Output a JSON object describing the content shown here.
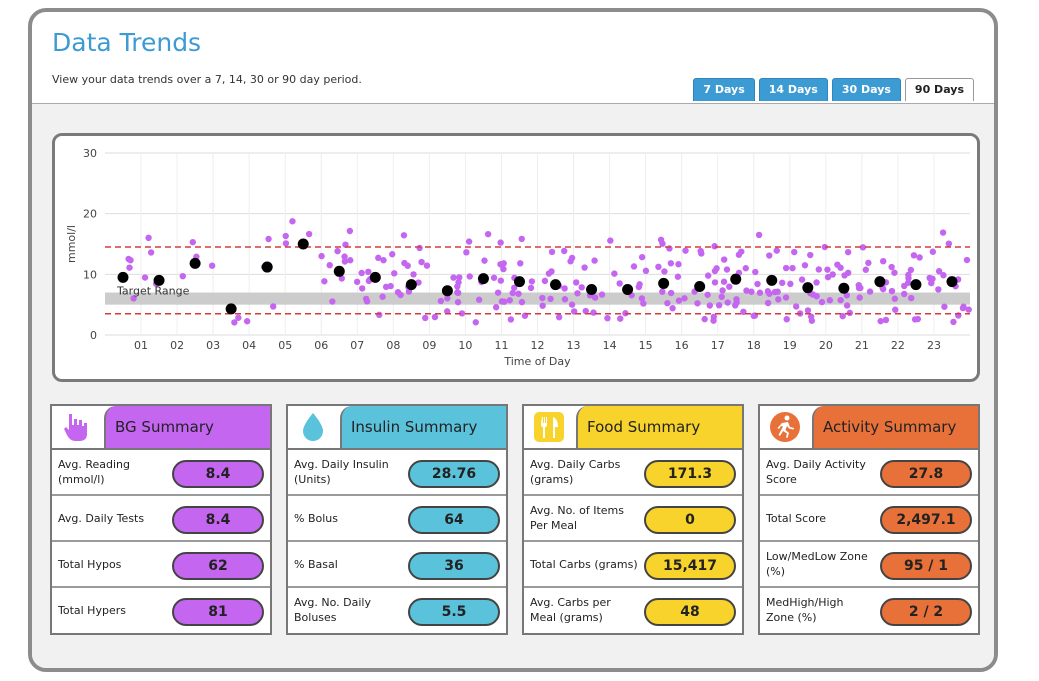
{
  "page": {
    "title": "Data Trends",
    "subtitle": "View your data trends over a 7, 14, 30 or 90 day period."
  },
  "tabs": [
    {
      "label": "7 Days",
      "active": false
    },
    {
      "label": "14 Days",
      "active": false
    },
    {
      "label": "30 Days",
      "active": false
    },
    {
      "label": "90 Days",
      "active": true
    }
  ],
  "chart_data": {
    "type": "scatter",
    "xlabel": "Time of Day",
    "ylabel": "mmol/l",
    "ylim": [
      0,
      30
    ],
    "xlim": [
      0,
      24
    ],
    "yticks": [
      "0",
      "10",
      "20",
      "30"
    ],
    "xticks": [
      "01",
      "02",
      "03",
      "04",
      "05",
      "06",
      "07",
      "08",
      "09",
      "10",
      "11",
      "12",
      "13",
      "14",
      "15",
      "16",
      "17",
      "18",
      "19",
      "20",
      "21",
      "22",
      "23"
    ],
    "target_range": {
      "label": "Target Range",
      "low": 5,
      "high": 7
    },
    "limits": {
      "hypo": 3.5,
      "hyper": 14.5
    },
    "hourly_averages": {
      "x": [
        0.5,
        1.5,
        2.5,
        3.5,
        4.5,
        5.5,
        6.5,
        7.5,
        8.5,
        9.5,
        10.5,
        11.5,
        12.5,
        13.5,
        14.5,
        15.5,
        16.5,
        17.5,
        18.5,
        19.5,
        20.5,
        21.5,
        22.5,
        23.5
      ],
      "y": [
        9.5,
        9.0,
        11.8,
        4.3,
        11.2,
        15.0,
        10.5,
        9.5,
        8.3,
        7.3,
        9.3,
        8.8,
        8.3,
        7.5,
        7.5,
        8.5,
        8.0,
        9.2,
        9.0,
        7.8,
        7.7,
        8.8,
        8.3,
        8.8
      ]
    },
    "readings_colors": {
      "reading": "#c466f0",
      "average": "#000000",
      "limit": "#d63a3a",
      "target": "#cccccc"
    }
  },
  "summaries": [
    {
      "title": "BG Summary",
      "icon": "hand-icon",
      "color": "#c466f0",
      "rows": [
        {
          "label": "Avg. Reading (mmol/l)",
          "value": "8.4"
        },
        {
          "label": "Avg. Daily Tests",
          "value": "8.4"
        },
        {
          "label": "Total Hypos",
          "value": "62"
        },
        {
          "label": "Total Hypers",
          "value": "81"
        }
      ]
    },
    {
      "title": "Insulin Summary",
      "icon": "drop-icon",
      "color": "#5bc2dc",
      "rows": [
        {
          "label": "Avg. Daily Insulin (Units)",
          "value": "28.76"
        },
        {
          "label": "% Bolus",
          "value": "64"
        },
        {
          "label": "% Basal",
          "value": "36"
        },
        {
          "label": "Avg. No. Daily Boluses",
          "value": "5.5"
        }
      ]
    },
    {
      "title": "Food Summary",
      "icon": "cutlery-icon",
      "color": "#f8d32c",
      "rows": [
        {
          "label": "Avg. Daily Carbs (grams)",
          "value": "171.3"
        },
        {
          "label": "Avg. No. of Items Per Meal",
          "value": "0"
        },
        {
          "label": "Total Carbs (grams)",
          "value": "15,417"
        },
        {
          "label": "Avg. Carbs per Meal (grams)",
          "value": "48"
        }
      ]
    },
    {
      "title": "Activity Summary",
      "icon": "runner-icon",
      "color": "#e8713a",
      "rows": [
        {
          "label": "Avg. Daily Activity Score",
          "value": "27.8"
        },
        {
          "label": "Total Score",
          "value": "2,497.1"
        },
        {
          "label": "Low/MedLow Zone (%)",
          "value": "95 / 1"
        },
        {
          "label": "MedHigh/High Zone (%)",
          "value": "2 / 2"
        }
      ]
    }
  ]
}
